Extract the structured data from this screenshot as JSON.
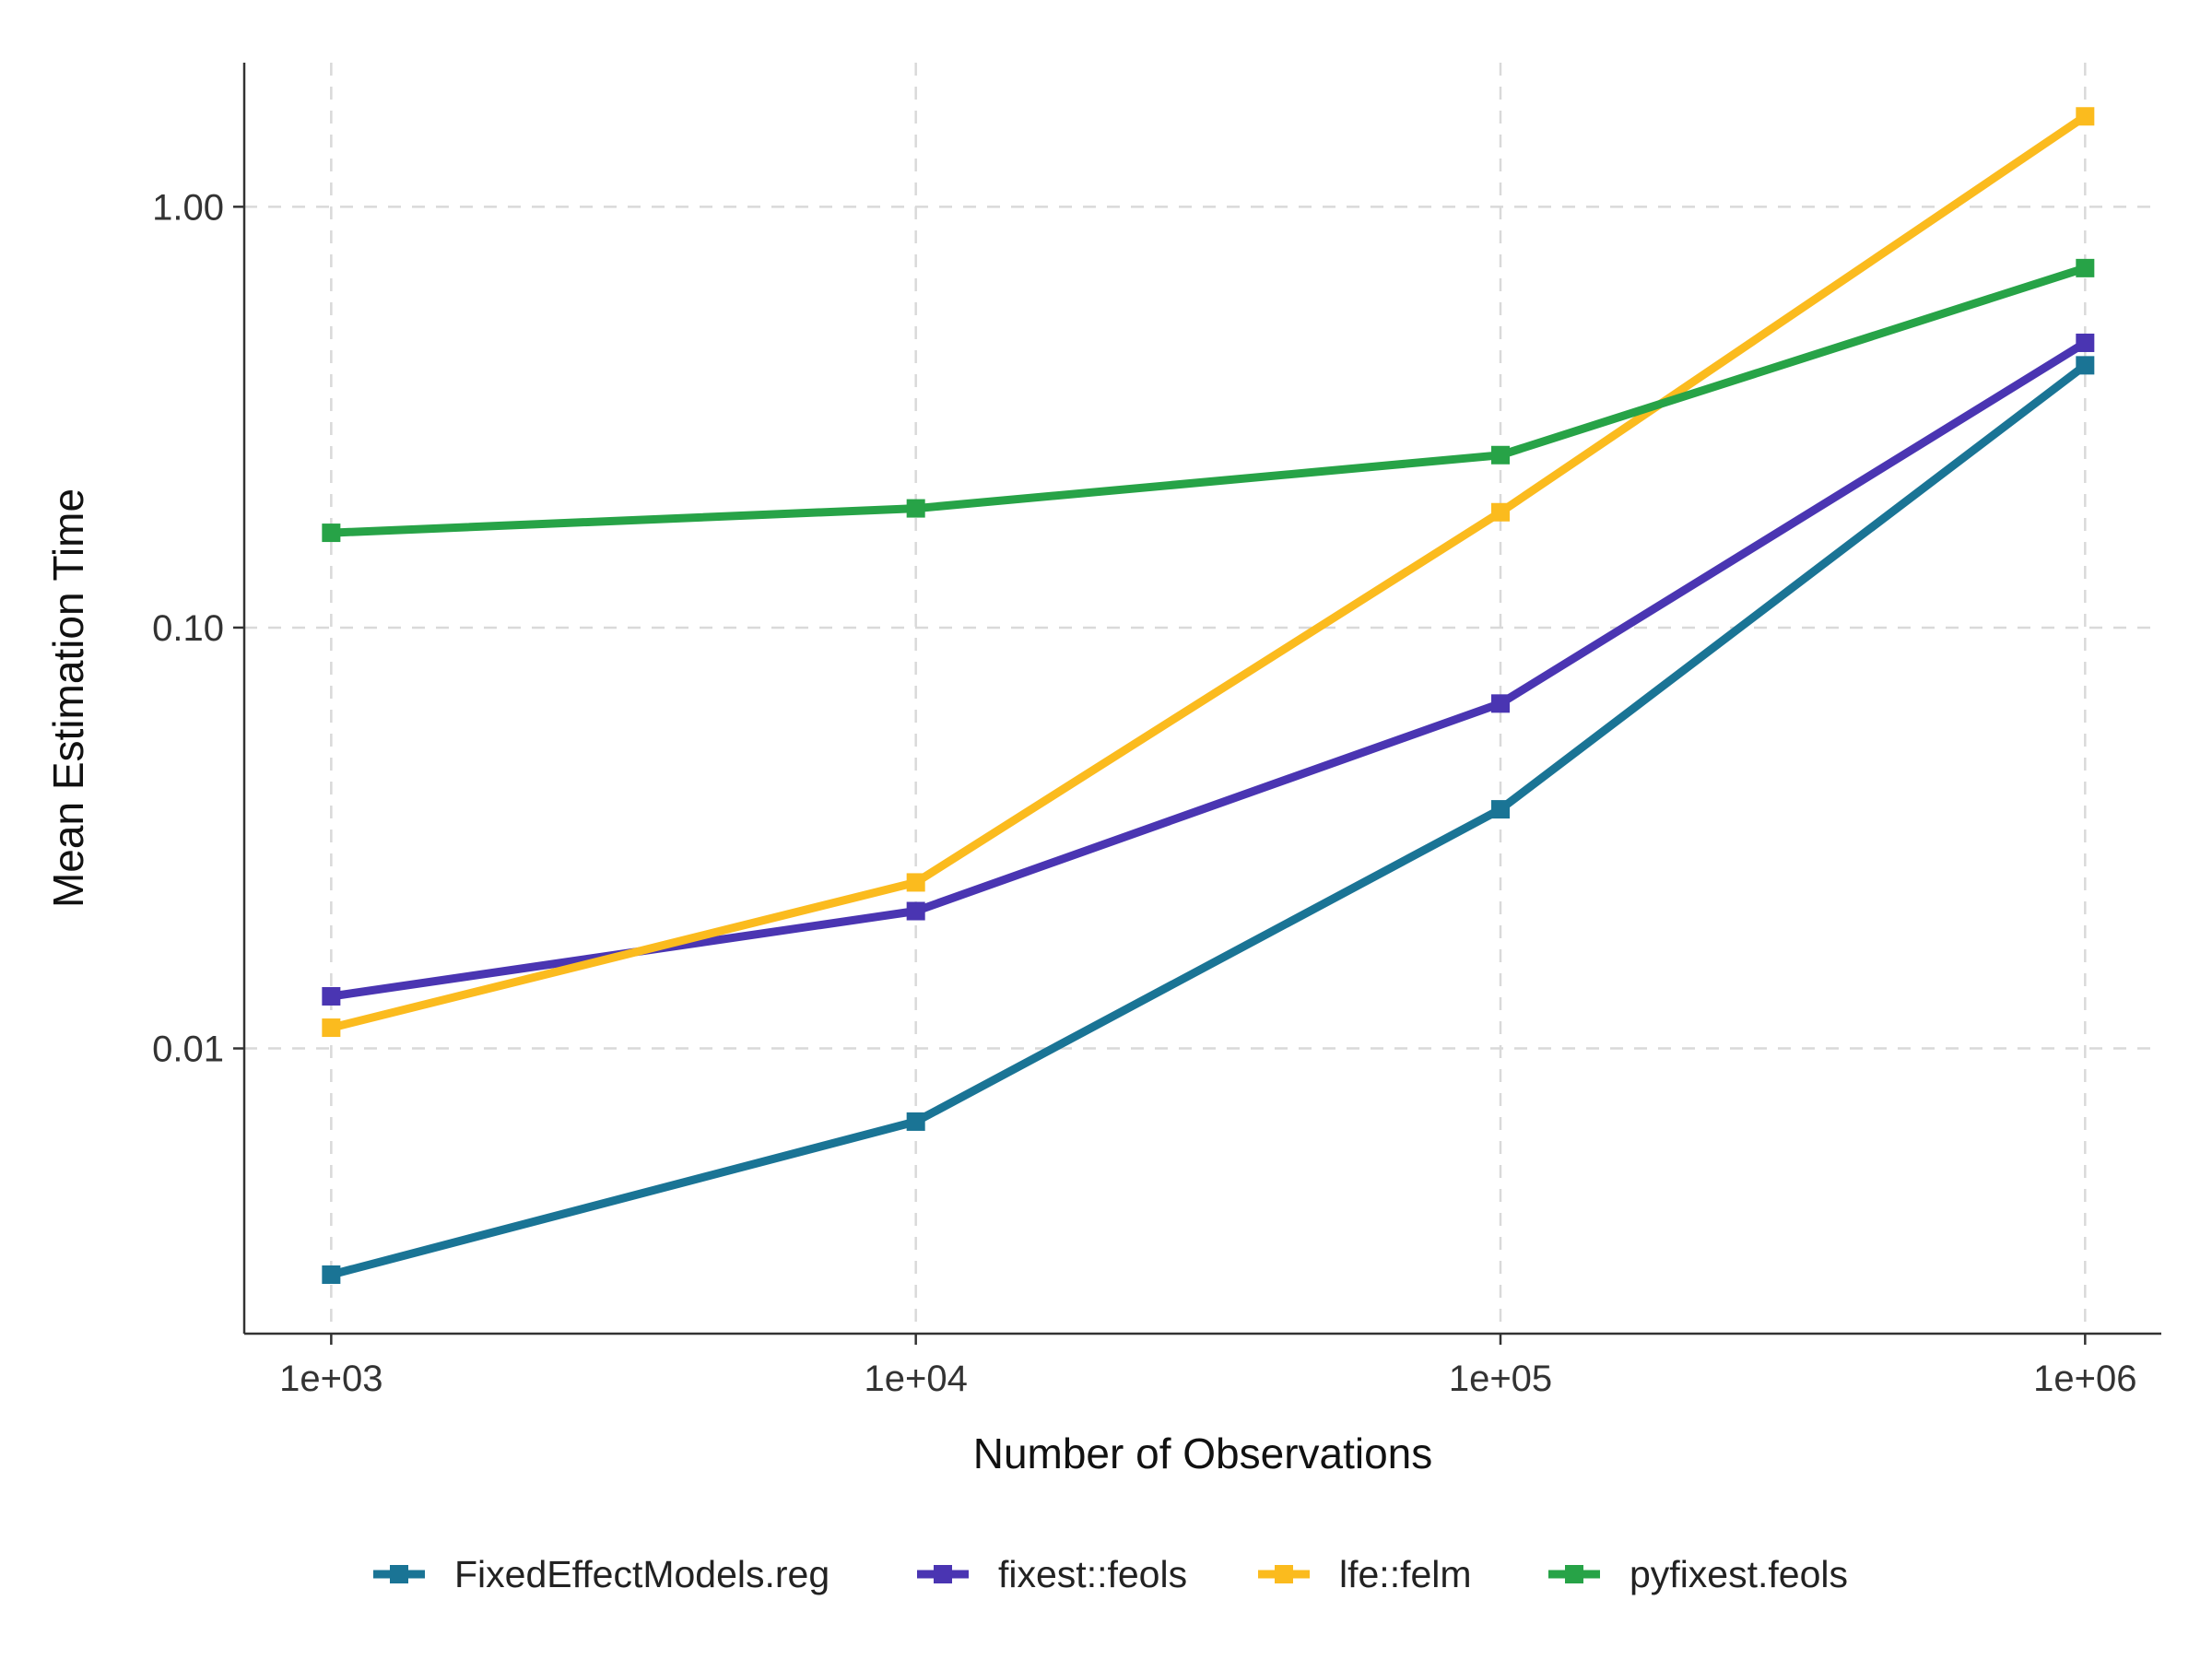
{
  "chart_data": {
    "type": "line",
    "xlabel": "Number of Observations",
    "ylabel": "Mean Estimation Time",
    "x_scale": "log10",
    "y_scale": "log10",
    "x": [
      1000,
      10000,
      100000,
      1000000
    ],
    "x_tick_labels": [
      "1e+03",
      "1e+04",
      "1e+05",
      "1e+06"
    ],
    "xlim": [
      710,
      1350000
    ],
    "y_ticks": [
      0.01,
      0.1,
      1.0
    ],
    "y_tick_labels": [
      "0.01",
      "0.10",
      "1.00"
    ],
    "ylim": [
      0.0021,
      2.2
    ],
    "grid": "major, dashed",
    "legend_position": "bottom",
    "series": [
      {
        "name": "FixedEffectModels.reg",
        "color": "#1a7495",
        "values": [
          0.0029,
          0.0067,
          0.037,
          0.42
        ]
      },
      {
        "name": "fixest::feols",
        "color": "#4a35b2",
        "values": [
          0.0133,
          0.0212,
          0.066,
          0.475
        ]
      },
      {
        "name": "lfe::felm",
        "color": "#fbbb1e",
        "values": [
          0.0112,
          0.0248,
          0.188,
          1.64
        ]
      },
      {
        "name": "pyfixest.feols",
        "color": "#27a347",
        "values": [
          0.168,
          0.192,
          0.257,
          0.715
        ]
      }
    ]
  }
}
